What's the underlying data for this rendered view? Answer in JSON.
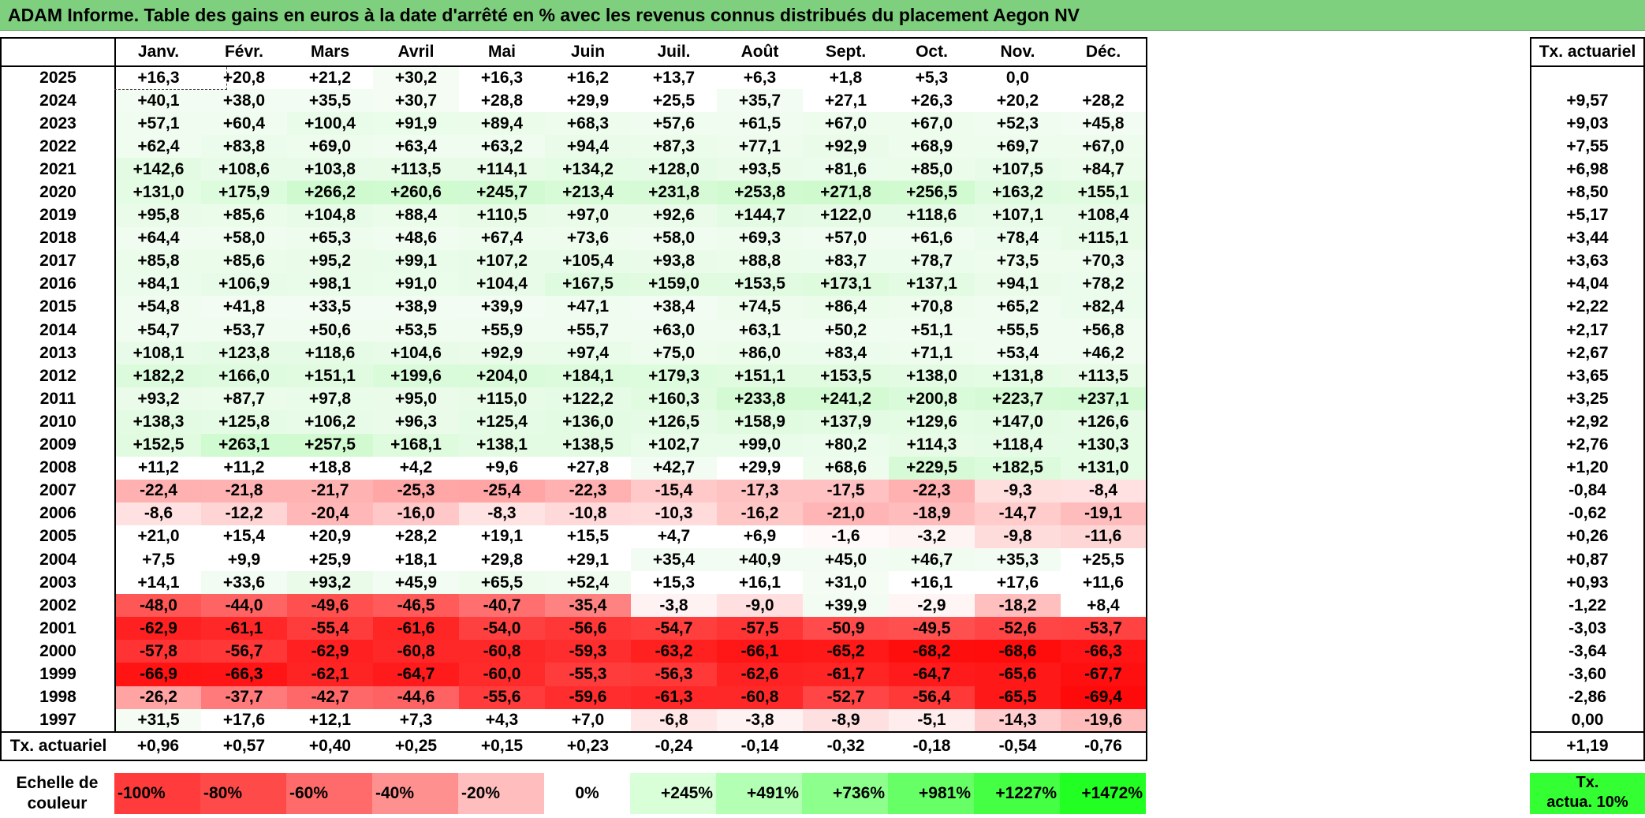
{
  "title": "ADAM Informe. Table des gains en euros à la date d'arrêté en % avec les revenus connus distribués du placement Aegon NV",
  "chart_data": {
    "type": "heatmap",
    "title": "ADAM Informe. Table des gains en euros à la date d'arrêté en % avec les revenus connus distribués du placement Aegon NV",
    "columns": [
      "Janv.",
      "Févr.",
      "Mars",
      "Avril",
      "Mai",
      "Juin",
      "Juil.",
      "Août",
      "Sept.",
      "Oct.",
      "Nov.",
      "Déc."
    ],
    "rate_header": "Tx. actuariel",
    "rows": [
      {
        "year": "2025",
        "values": [
          16.3,
          20.8,
          21.2,
          30.2,
          16.3,
          16.2,
          13.7,
          6.3,
          1.8,
          5.3,
          0.0,
          null
        ],
        "rate": null
      },
      {
        "year": "2024",
        "values": [
          40.1,
          38.0,
          35.5,
          30.7,
          28.8,
          29.9,
          25.5,
          35.7,
          27.1,
          26.3,
          20.2,
          28.2
        ],
        "rate": 9.57
      },
      {
        "year": "2023",
        "values": [
          57.1,
          60.4,
          100.4,
          91.9,
          89.4,
          68.3,
          57.6,
          61.5,
          67.0,
          67.0,
          52.3,
          45.8
        ],
        "rate": 9.03
      },
      {
        "year": "2022",
        "values": [
          62.4,
          83.8,
          69.0,
          63.4,
          63.2,
          94.4,
          87.3,
          77.1,
          92.9,
          68.9,
          69.7,
          67.0
        ],
        "rate": 7.55
      },
      {
        "year": "2021",
        "values": [
          142.6,
          108.6,
          103.8,
          113.5,
          114.1,
          134.2,
          128.0,
          93.5,
          81.6,
          85.0,
          107.5,
          84.7
        ],
        "rate": 6.98
      },
      {
        "year": "2020",
        "values": [
          131.0,
          175.9,
          266.2,
          260.6,
          245.7,
          213.4,
          231.8,
          253.8,
          271.8,
          256.5,
          163.2,
          155.1
        ],
        "rate": 8.5
      },
      {
        "year": "2019",
        "values": [
          95.8,
          85.6,
          104.8,
          88.4,
          110.5,
          97.0,
          92.6,
          144.7,
          122.0,
          118.6,
          107.1,
          108.4
        ],
        "rate": 5.17
      },
      {
        "year": "2018",
        "values": [
          64.4,
          58.0,
          65.3,
          48.6,
          67.4,
          73.6,
          58.0,
          69.3,
          57.0,
          61.6,
          78.4,
          115.1
        ],
        "rate": 3.44
      },
      {
        "year": "2017",
        "values": [
          85.8,
          85.6,
          95.2,
          99.1,
          107.2,
          105.4,
          93.8,
          88.8,
          83.7,
          78.7,
          73.5,
          70.3
        ],
        "rate": 3.63
      },
      {
        "year": "2016",
        "values": [
          84.1,
          106.9,
          98.1,
          91.0,
          104.4,
          167.5,
          159.0,
          153.5,
          173.1,
          137.1,
          94.1,
          78.2
        ],
        "rate": 4.04
      },
      {
        "year": "2015",
        "values": [
          54.8,
          41.8,
          33.5,
          38.9,
          39.9,
          47.1,
          38.4,
          74.5,
          86.4,
          70.8,
          65.2,
          82.4
        ],
        "rate": 2.22
      },
      {
        "year": "2014",
        "values": [
          54.7,
          53.7,
          50.6,
          53.5,
          55.9,
          55.7,
          63.0,
          63.1,
          50.2,
          51.1,
          55.5,
          56.8
        ],
        "rate": 2.17
      },
      {
        "year": "2013",
        "values": [
          108.1,
          123.8,
          118.6,
          104.6,
          92.9,
          97.4,
          75.0,
          86.0,
          83.4,
          71.1,
          53.4,
          46.2
        ],
        "rate": 2.67
      },
      {
        "year": "2012",
        "values": [
          182.2,
          166.0,
          151.1,
          199.6,
          204.0,
          184.1,
          179.3,
          151.1,
          153.5,
          138.0,
          131.8,
          113.5
        ],
        "rate": 3.65
      },
      {
        "year": "2011",
        "values": [
          93.2,
          87.7,
          97.8,
          95.0,
          115.0,
          122.2,
          160.3,
          233.8,
          241.2,
          200.8,
          223.7,
          237.1
        ],
        "rate": 3.25
      },
      {
        "year": "2010",
        "values": [
          138.3,
          125.8,
          106.2,
          96.3,
          125.4,
          136.0,
          126.5,
          158.9,
          137.9,
          129.6,
          147.0,
          126.6
        ],
        "rate": 2.92
      },
      {
        "year": "2009",
        "values": [
          152.5,
          263.1,
          257.5,
          168.1,
          138.1,
          138.5,
          102.7,
          99.0,
          80.2,
          114.3,
          118.4,
          130.3
        ],
        "rate": 2.76
      },
      {
        "year": "2008",
        "values": [
          11.2,
          11.2,
          18.8,
          4.2,
          9.6,
          27.8,
          42.7,
          29.9,
          68.6,
          229.5,
          182.5,
          131.0
        ],
        "rate": 1.2
      },
      {
        "year": "2007",
        "values": [
          -22.4,
          -21.8,
          -21.7,
          -25.3,
          -25.4,
          -22.3,
          -15.4,
          -17.3,
          -17.5,
          -22.3,
          -9.3,
          -8.4
        ],
        "rate": -0.84
      },
      {
        "year": "2006",
        "values": [
          -8.6,
          -12.2,
          -20.4,
          -16.0,
          -8.3,
          -10.8,
          -10.3,
          -16.2,
          -21.0,
          -18.9,
          -14.7,
          -19.1
        ],
        "rate": -0.62
      },
      {
        "year": "2005",
        "values": [
          21.0,
          15.4,
          20.9,
          28.2,
          19.1,
          15.5,
          4.7,
          6.9,
          -1.6,
          -3.2,
          -9.8,
          -11.6
        ],
        "rate": 0.26
      },
      {
        "year": "2004",
        "values": [
          7.5,
          9.9,
          25.9,
          18.1,
          29.8,
          29.1,
          35.4,
          40.9,
          45.0,
          46.7,
          35.3,
          25.5
        ],
        "rate": 0.87
      },
      {
        "year": "2003",
        "values": [
          14.1,
          33.6,
          93.2,
          45.9,
          65.5,
          52.4,
          15.3,
          16.1,
          31.0,
          16.1,
          17.6,
          11.6
        ],
        "rate": 0.93
      },
      {
        "year": "2002",
        "values": [
          -48.0,
          -44.0,
          -49.6,
          -46.5,
          -40.7,
          -35.4,
          -3.8,
          -9.0,
          39.9,
          -2.9,
          -18.2,
          8.4
        ],
        "rate": -1.22
      },
      {
        "year": "2001",
        "values": [
          -62.9,
          -61.1,
          -55.4,
          -61.6,
          -54.0,
          -56.6,
          -54.7,
          -57.5,
          -50.9,
          -49.5,
          -52.6,
          -53.7
        ],
        "rate": -3.03
      },
      {
        "year": "2000",
        "values": [
          -57.8,
          -56.7,
          -62.9,
          -60.8,
          -60.8,
          -59.3,
          -63.2,
          -66.1,
          -65.2,
          -68.2,
          -68.6,
          -66.3
        ],
        "rate": -3.64
      },
      {
        "year": "1999",
        "values": [
          -66.9,
          -66.3,
          -62.1,
          -64.7,
          -60.0,
          -55.3,
          -56.3,
          -62.6,
          -61.7,
          -64.7,
          -65.6,
          -67.7
        ],
        "rate": -3.6
      },
      {
        "year": "1998",
        "values": [
          -26.2,
          -37.7,
          -42.7,
          -44.6,
          -55.6,
          -59.6,
          -61.3,
          -60.8,
          -52.7,
          -56.4,
          -65.5,
          -69.4
        ],
        "rate": -2.86
      },
      {
        "year": "1997",
        "values": [
          31.5,
          17.6,
          12.1,
          7.3,
          4.3,
          7.0,
          -6.8,
          -3.8,
          -8.9,
          -5.1,
          -14.3,
          -19.6
        ],
        "rate": 0.0
      }
    ],
    "footer": {
      "label": "Tx. actuariel",
      "values": [
        0.96,
        0.57,
        0.4,
        0.25,
        0.15,
        0.23,
        -0.24,
        -0.14,
        -0.32,
        -0.18,
        -0.54,
        -0.76
      ],
      "rate": 1.19
    },
    "color_scale": {
      "label": "Echelle de couleur",
      "stops": [
        "-100%",
        "-80%",
        "-60%",
        "-40%",
        "-20%",
        "0%",
        "+245%",
        "+491%",
        "+736%",
        "+981%",
        "+1227%",
        "+1472%"
      ],
      "colors": [
        "#ff3b3b",
        "#ff4a4a",
        "#ff6a6a",
        "#ff9090",
        "#ffbdbd",
        "#ffffff",
        "#d8ffd8",
        "#b3ffb3",
        "#8dff8d",
        "#66ff66",
        "#44ff44",
        "#22ff22"
      ],
      "rate_label": "Tx. actua. 10%",
      "rate_color": "#33ff33"
    }
  }
}
